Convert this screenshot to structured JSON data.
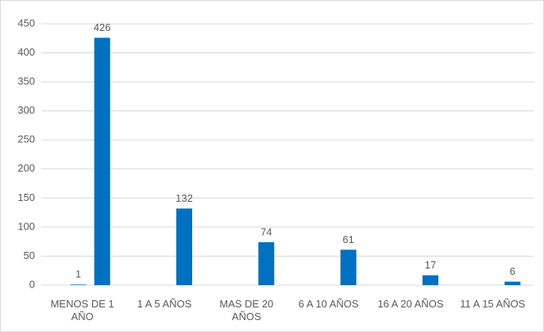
{
  "chart_data": {
    "type": "bar",
    "categories": [
      "MENOS DE 1 AÑO",
      "1 A 5 AÑOS",
      "MAS DE 20 AÑOS",
      "6 A 10 AÑOS",
      "16 A 20 AÑOS",
      "11 A 15 AÑOS"
    ],
    "series": [
      {
        "color": "#0070c0",
        "values": [
          1,
          null,
          null,
          null,
          null,
          null
        ]
      },
      {
        "color": "#0070c0",
        "values": [
          426,
          132,
          74,
          61,
          17,
          6
        ]
      }
    ],
    "ylim": [
      0,
      450
    ],
    "yticks": [
      0,
      50,
      100,
      150,
      200,
      250,
      300,
      350,
      400,
      450
    ],
    "grid": true
  }
}
